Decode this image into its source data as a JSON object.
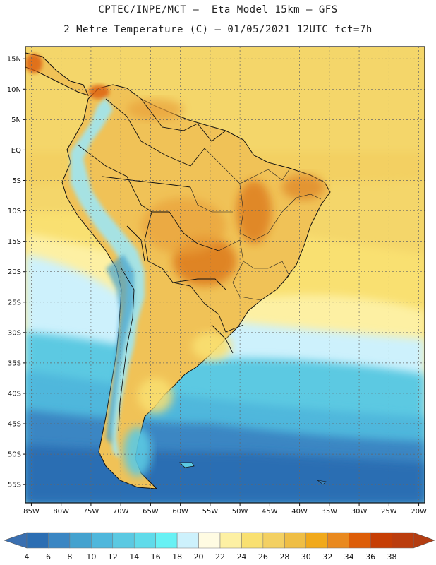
{
  "header": {
    "title_line1": "CPTEC/INPE/MCT –  Eta Model 15km – GFS",
    "title_line2": "2 Metre Temperature (C) – 01/05/2021 12UTC fct=7h"
  },
  "map": {
    "lon_range": [
      -86,
      -19
    ],
    "lat_range": [
      -58,
      17
    ],
    "lat_ticks": [
      {
        "lat": 15,
        "label": "15N"
      },
      {
        "lat": 10,
        "label": "10N"
      },
      {
        "lat": 5,
        "label": "5N"
      },
      {
        "lat": 0,
        "label": "EQ"
      },
      {
        "lat": -5,
        "label": "5S"
      },
      {
        "lat": -10,
        "label": "10S"
      },
      {
        "lat": -15,
        "label": "15S"
      },
      {
        "lat": -20,
        "label": "20S"
      },
      {
        "lat": -25,
        "label": "25S"
      },
      {
        "lat": -30,
        "label": "30S"
      },
      {
        "lat": -35,
        "label": "35S"
      },
      {
        "lat": -40,
        "label": "40S"
      },
      {
        "lat": -45,
        "label": "45S"
      },
      {
        "lat": -50,
        "label": "50S"
      },
      {
        "lat": -55,
        "label": "55S"
      }
    ],
    "lon_ticks": [
      {
        "lon": -85,
        "label": "85W"
      },
      {
        "lon": -80,
        "label": "80W"
      },
      {
        "lon": -75,
        "label": "75W"
      },
      {
        "lon": -70,
        "label": "70W"
      },
      {
        "lon": -65,
        "label": "65W"
      },
      {
        "lon": -60,
        "label": "60W"
      },
      {
        "lon": -55,
        "label": "55W"
      },
      {
        "lon": -50,
        "label": "50W"
      },
      {
        "lon": -45,
        "label": "45W"
      },
      {
        "lon": -40,
        "label": "40W"
      },
      {
        "lon": -35,
        "label": "35W"
      },
      {
        "lon": -30,
        "label": "30W"
      },
      {
        "lon": -25,
        "label": "25W"
      },
      {
        "lon": -20,
        "label": "20W"
      }
    ]
  },
  "colorbar": {
    "labels": [
      "4",
      "6",
      "8",
      "10",
      "12",
      "14",
      "16",
      "18",
      "20",
      "22",
      "24",
      "26",
      "28",
      "30",
      "32",
      "34",
      "36",
      "38"
    ],
    "colors": [
      "#2c6eb3",
      "#3a86c3",
      "#44a2cf",
      "#4fb7dc",
      "#5bc9e2",
      "#60dbea",
      "#68f1f4",
      "#cdf1fc",
      "#fffbe2",
      "#fdf0a3",
      "#f9e071",
      "#f3d062",
      "#efbe45",
      "#f1a91b",
      "#e9891f",
      "#dd5d08",
      "#c63e05",
      "#bb3d0e"
    ]
  },
  "palette": {
    "ocean_cold": "#2c6eb3",
    "ocean_cool": "#44a2cf",
    "ocean_mid": "#5bc9e2",
    "ocean_light": "#cdf1fc",
    "ocean_warm": "#fdf0a3",
    "ocean_hot": "#f4d66a",
    "land_warm": "#f0c257",
    "land_hot": "#e9a13a",
    "land_vhot": "#d9781c",
    "andes": "#9fe6f3",
    "border": "#111111"
  }
}
